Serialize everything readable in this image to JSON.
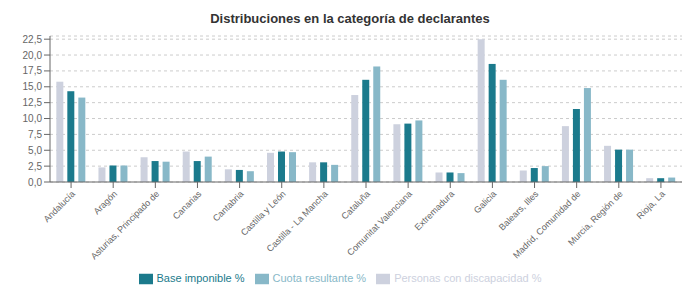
{
  "chart_data": {
    "type": "bar",
    "title": "Distribuciones en la categoría de declarantes",
    "categories": [
      "Andalucía",
      "Aragón",
      "Asturias, Principado de",
      "Canarias",
      "Cantabria",
      "Castilla y León",
      "Castilla - La Mancha",
      "Cataluña",
      "Comunitat Valenciana",
      "Extremadura",
      "Galicia",
      "Balears, Illes",
      "Madrid, Comunidad de",
      "Murcia, Región de",
      "Rioja, La"
    ],
    "series": [
      {
        "name": "Personas con discapacidad %",
        "color": "#cdd1de",
        "values": [
          15.8,
          2.3,
          3.9,
          4.8,
          2.0,
          4.6,
          3.1,
          13.7,
          9.1,
          1.5,
          22.5,
          1.8,
          8.8,
          5.7,
          0.6
        ]
      },
      {
        "name": "Base imponible %",
        "color": "#1b7a8c",
        "values": [
          14.3,
          2.6,
          3.3,
          3.3,
          1.9,
          4.8,
          3.1,
          16.1,
          9.2,
          1.5,
          18.6,
          2.2,
          11.5,
          5.1,
          0.6
        ]
      },
      {
        "name": "Cuota resultante %",
        "color": "#88b8c8",
        "values": [
          13.3,
          2.6,
          3.2,
          4.0,
          1.7,
          4.7,
          2.7,
          18.2,
          9.7,
          1.4,
          16.1,
          2.5,
          14.8,
          5.1,
          0.7
        ]
      }
    ],
    "ylim": [
      0,
      23.0
    ],
    "yticks": [
      {
        "value": 0.0,
        "label": "0,0"
      },
      {
        "value": 2.5,
        "label": "2,5"
      },
      {
        "value": 5.0,
        "label": "5,0"
      },
      {
        "value": 7.5,
        "label": "7,5"
      },
      {
        "value": 10.0,
        "label": "10,0"
      },
      {
        "value": 12.5,
        "label": "12,5"
      },
      {
        "value": 15.0,
        "label": "15,0"
      },
      {
        "value": 17.5,
        "label": "17,5"
      },
      {
        "value": 20.0,
        "label": "20,0"
      },
      {
        "value": 22.5,
        "label": "22,5"
      }
    ],
    "grid": true,
    "legend": "bottom"
  }
}
